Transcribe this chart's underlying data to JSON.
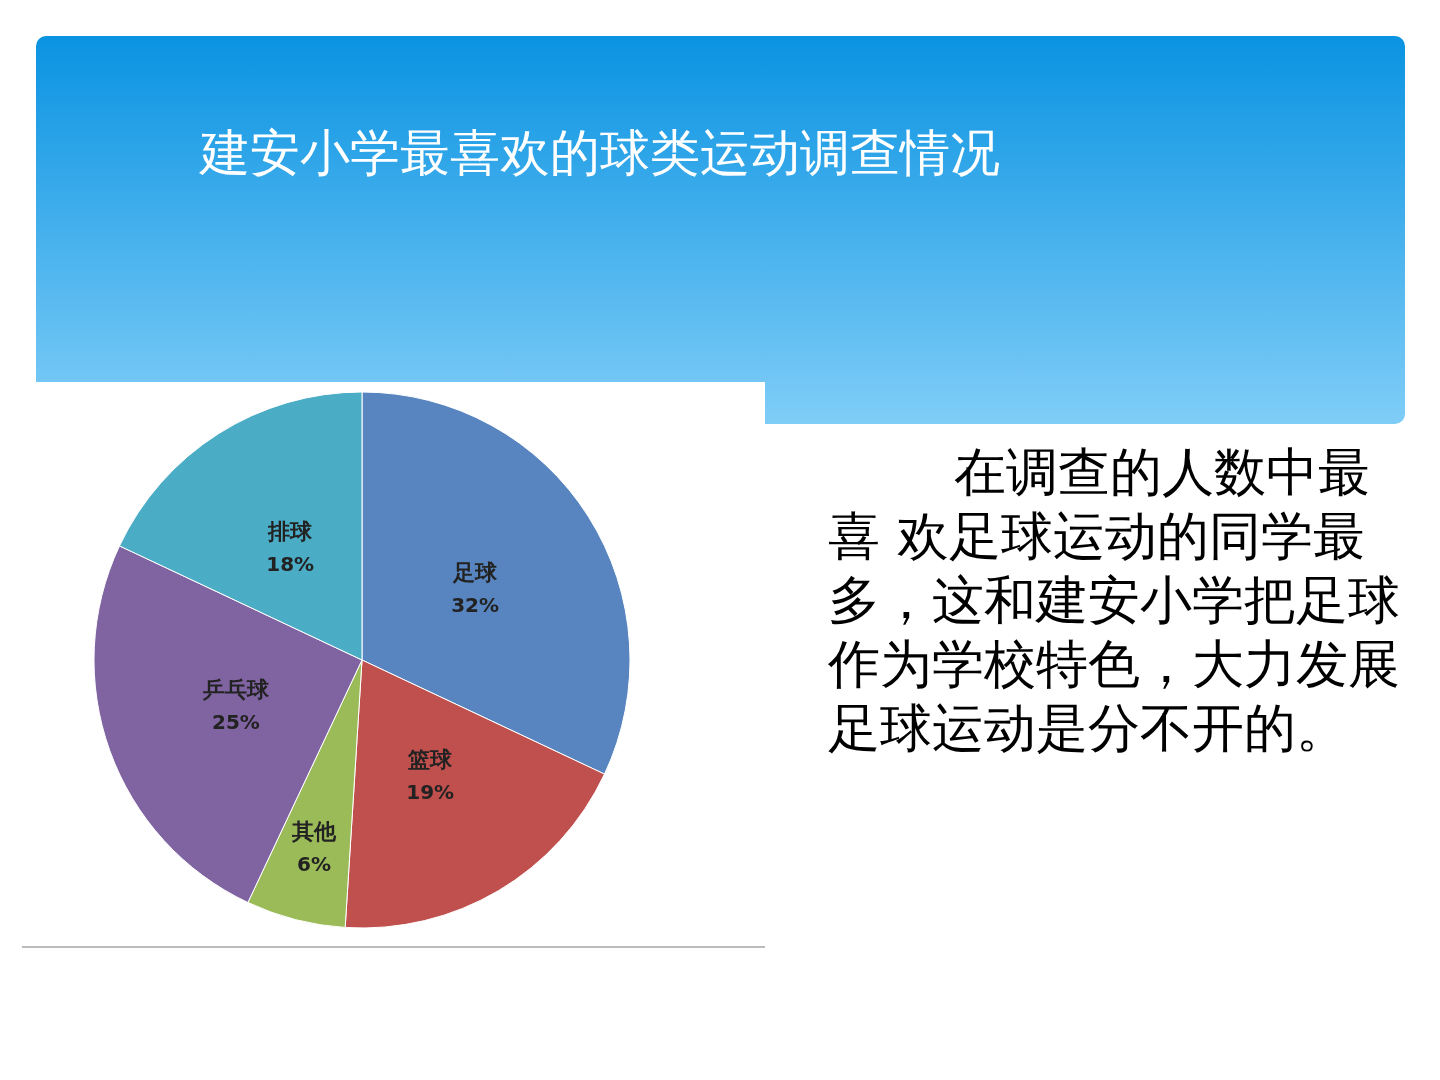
{
  "chart_data": {
    "type": "pie",
    "title": "建安小学最喜欢的球类运动调查情况",
    "categories": [
      "足球",
      "篮球",
      "其他",
      "乒乓球",
      "排球"
    ],
    "values": [
      32,
      19,
      6,
      25,
      18
    ],
    "value_labels": [
      "32%",
      "19%",
      "6%",
      "25%",
      "18%"
    ],
    "colors": [
      "#5885bf",
      "#c0504d",
      "#9bbb59",
      "#8064a2",
      "#4bacc6"
    ],
    "annotations": [
      "在调查的人数中最喜 欢足球运动的同学最多，这和建安小学把足球作为学校特色，大力发展足球运动是分不开的。"
    ]
  }
}
